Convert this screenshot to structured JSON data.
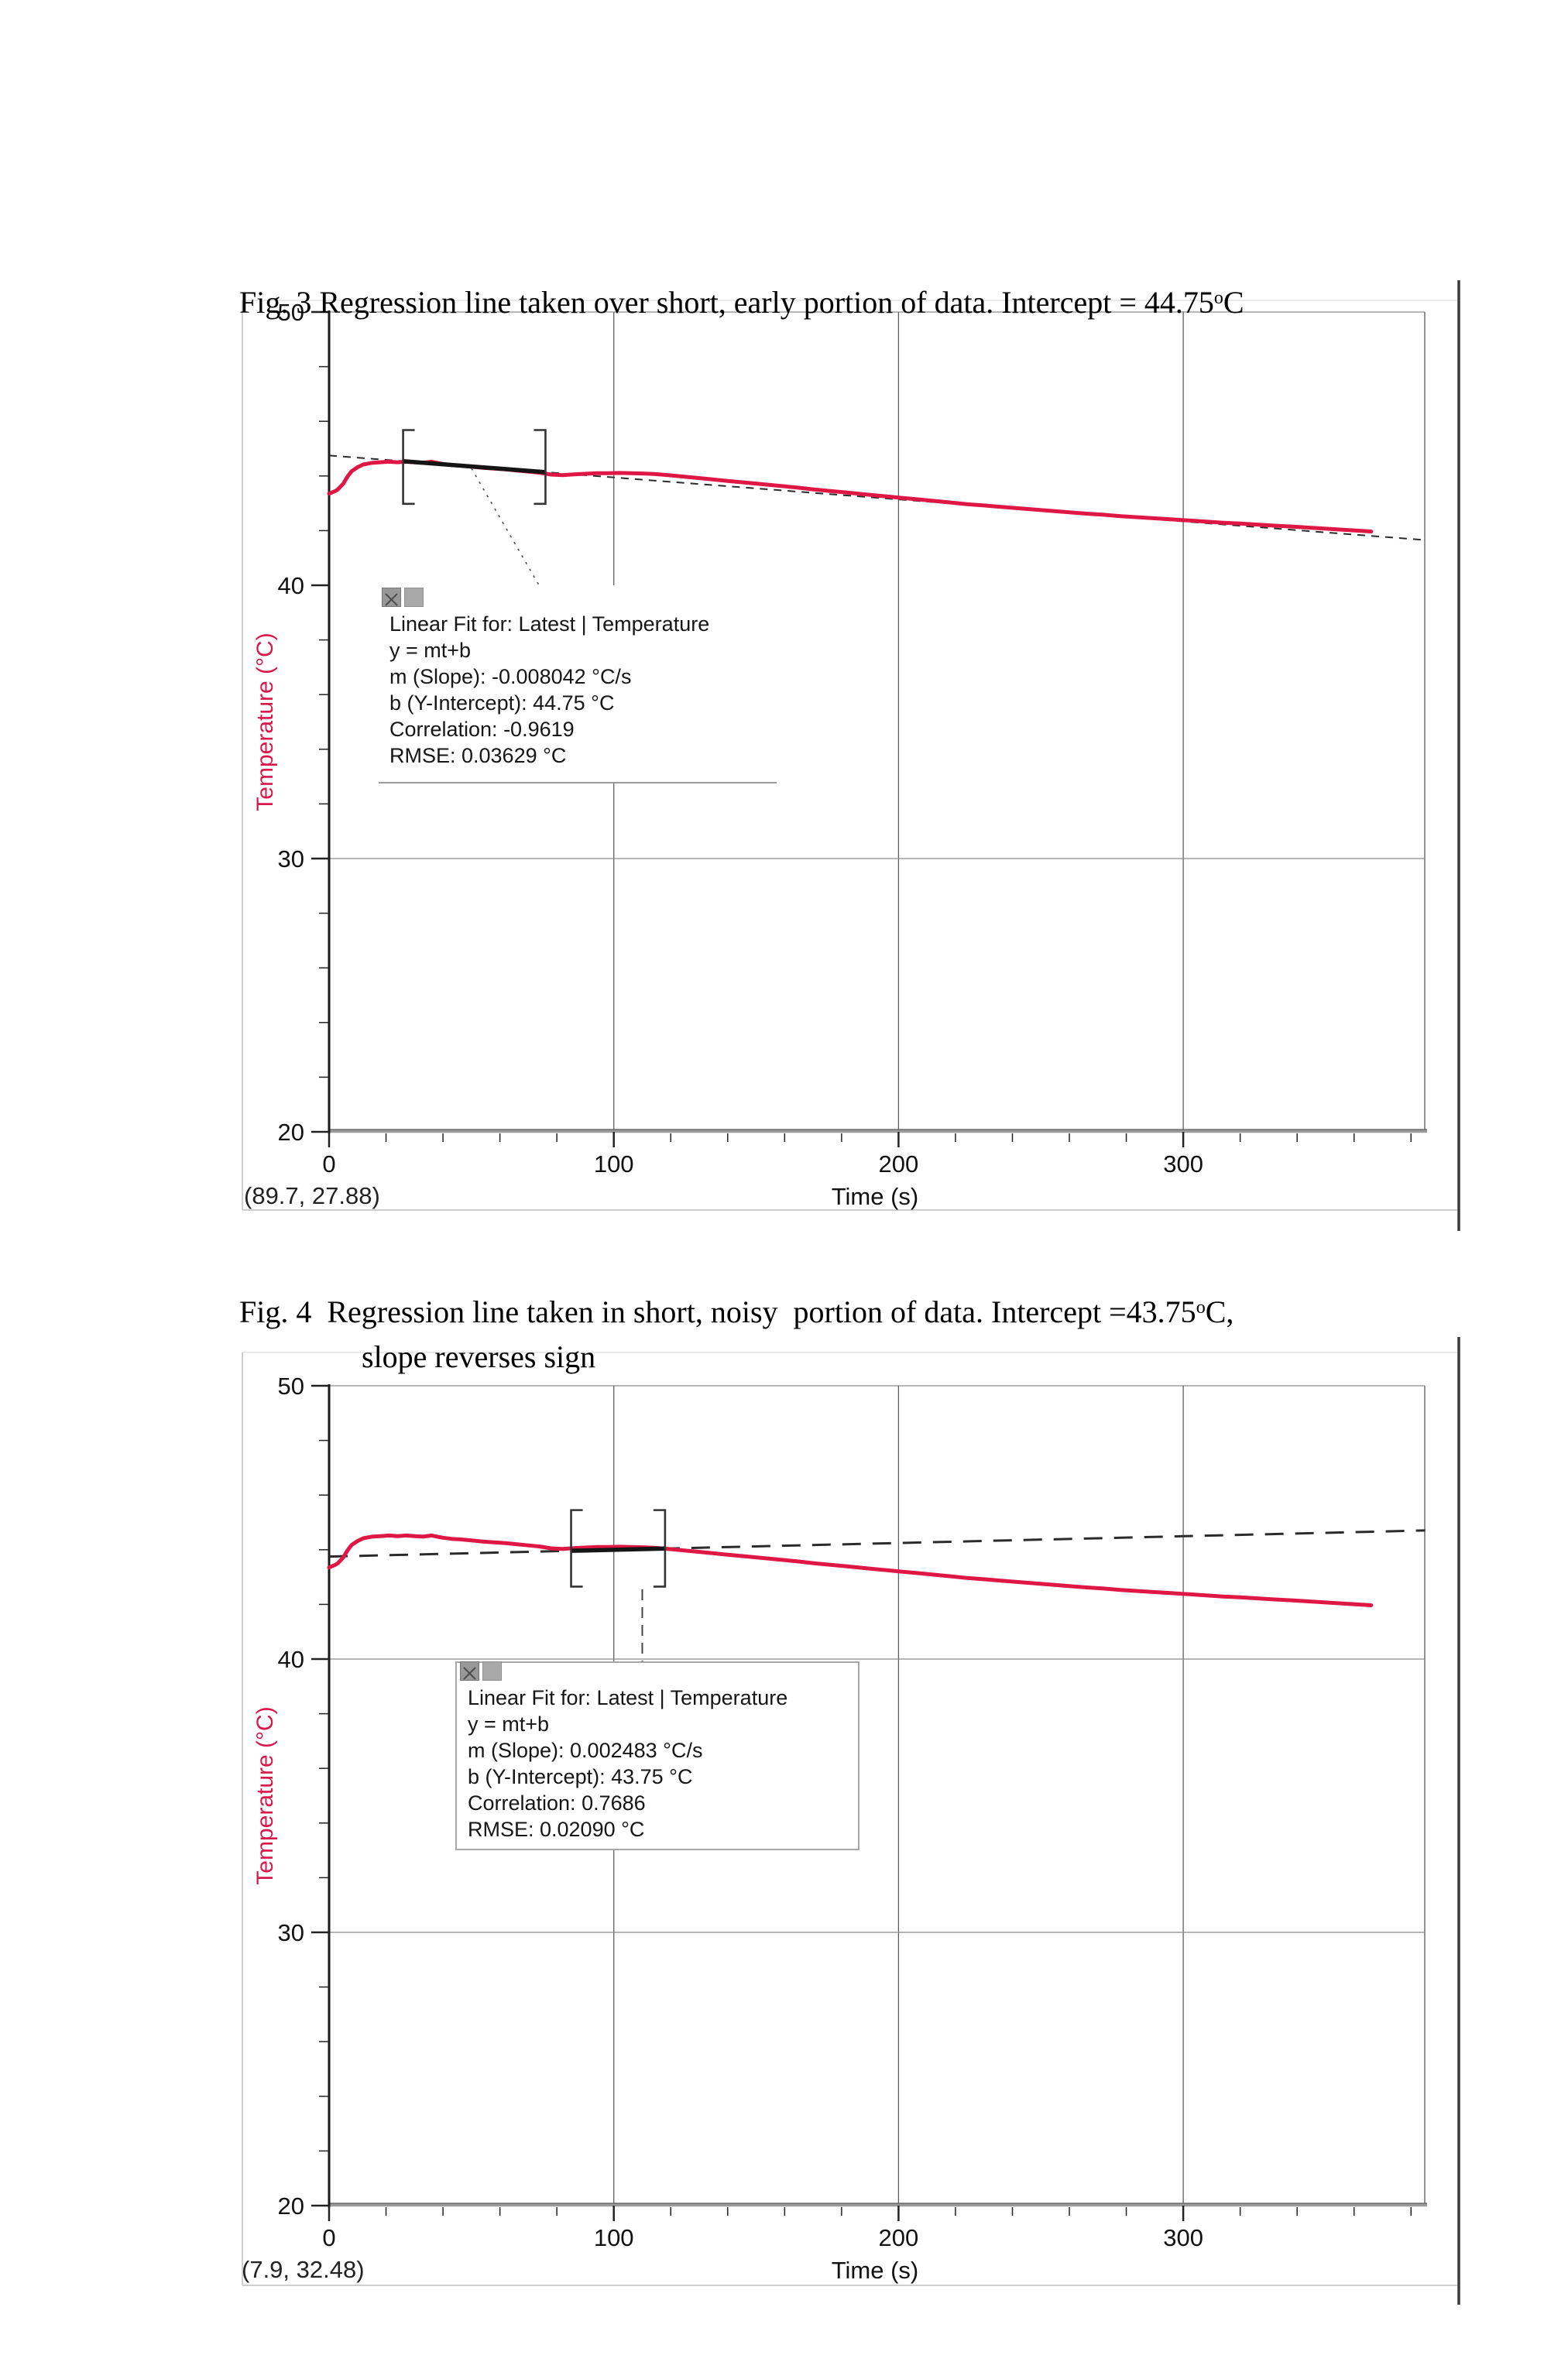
{
  "document": {
    "figures": [
      {
        "caption": {
          "before": "Fig. 3 Regression line taken over short, early portion of data. Intercept = 44.75",
          "sup": "o",
          "after": "C",
          "line2": null
        }
      },
      {
        "caption": {
          "before": "Fig. 4  Regression line taken in short, noisy  portion of data. Intercept =43.75",
          "sup": "o",
          "after": "C,",
          "line2": "slope reverses sign"
        }
      }
    ]
  },
  "chart_data": [
    {
      "type": "line",
      "title": "Fig. 3 Regression line taken over short, early portion of data. Intercept = 44.75°C",
      "xlabel": "Time (s)",
      "ylabel": "Temperature (°C)",
      "xlim": [
        0,
        385
      ],
      "ylim": [
        20,
        50
      ],
      "x_ticks": [
        0,
        100,
        200,
        300
      ],
      "x_minor_step": 20,
      "y_ticks": [
        50,
        40,
        30,
        20
      ],
      "y_minor_step": 2,
      "v_gridlines": [
        100,
        200,
        300
      ],
      "h_gridlines": [
        30
      ],
      "grid": true,
      "legend_position": "none",
      "series_color": "#df1745",
      "ylabel_color": "#d8174a",
      "series": [
        {
          "name": "Latest | Temperature",
          "color": "#df1745",
          "points": [
            [
              0,
              43.35
            ],
            [
              2,
              43.44
            ],
            [
              3,
              43.5
            ],
            [
              5,
              43.72
            ],
            [
              6,
              43.9
            ],
            [
              7,
              44.05
            ],
            [
              8,
              44.18
            ],
            [
              10,
              44.32
            ],
            [
              12,
              44.42
            ],
            [
              15,
              44.48
            ],
            [
              18,
              44.5
            ],
            [
              21,
              44.52
            ],
            [
              24,
              44.5
            ],
            [
              27,
              44.52
            ],
            [
              30,
              44.5
            ],
            [
              33,
              44.48
            ],
            [
              36,
              44.52
            ],
            [
              38,
              44.48
            ],
            [
              40,
              44.44
            ],
            [
              43,
              44.4
            ],
            [
              46,
              44.38
            ],
            [
              50,
              44.34
            ],
            [
              54,
              44.3
            ],
            [
              58,
              44.27
            ],
            [
              62,
              44.24
            ],
            [
              66,
              44.2
            ],
            [
              70,
              44.16
            ],
            [
              74,
              44.12
            ],
            [
              78,
              44.05
            ],
            [
              82,
              44.03
            ],
            [
              86,
              44.06
            ],
            [
              90,
              44.08
            ],
            [
              94,
              44.1
            ],
            [
              98,
              44.1
            ],
            [
              102,
              44.11
            ],
            [
              106,
              44.1
            ],
            [
              110,
              44.09
            ],
            [
              114,
              44.07
            ],
            [
              118,
              44.04
            ],
            [
              122,
              44.0
            ],
            [
              128,
              43.94
            ],
            [
              134,
              43.88
            ],
            [
              140,
              43.82
            ],
            [
              146,
              43.76
            ],
            [
              152,
              43.7
            ],
            [
              158,
              43.64
            ],
            [
              164,
              43.58
            ],
            [
              170,
              43.51
            ],
            [
              176,
              43.45
            ],
            [
              182,
              43.39
            ],
            [
              188,
              43.33
            ],
            [
              194,
              43.27
            ],
            [
              200,
              43.21
            ],
            [
              206,
              43.15
            ],
            [
              212,
              43.09
            ],
            [
              218,
              43.03
            ],
            [
              224,
              42.97
            ],
            [
              230,
              42.92
            ],
            [
              236,
              42.87
            ],
            [
              242,
              42.82
            ],
            [
              248,
              42.77
            ],
            [
              254,
              42.72
            ],
            [
              260,
              42.67
            ],
            [
              266,
              42.62
            ],
            [
              272,
              42.58
            ],
            [
              278,
              42.53
            ],
            [
              284,
              42.49
            ],
            [
              290,
              42.45
            ],
            [
              296,
              42.41
            ],
            [
              302,
              42.37
            ],
            [
              308,
              42.33
            ],
            [
              314,
              42.29
            ],
            [
              320,
              42.26
            ],
            [
              326,
              42.22
            ],
            [
              332,
              42.18
            ],
            [
              338,
              42.15
            ],
            [
              344,
              42.11
            ],
            [
              350,
              42.07
            ],
            [
              356,
              42.03
            ],
            [
              361,
              42.0
            ],
            [
              366,
              41.97
            ]
          ]
        }
      ],
      "fit": {
        "label": "Linear Fit for: Latest | Temperature",
        "equation": "y = mt+b",
        "slope": -0.008042,
        "slope_units": "°C/s",
        "intercept": 44.75,
        "intercept_units": "°C",
        "correlation": -0.9619,
        "rmse": 0.03629,
        "rmse_units": "°C",
        "t_start": 0,
        "t_end": 385,
        "line_style": "dashed-fine"
      },
      "selection": {
        "t_start": 26,
        "t_end": 76,
        "bracket_center_temp": 44.33,
        "bracket_half_height_deg": 1.35
      },
      "connector": {
        "style": "dotted",
        "points": [
          [
            50,
            44.28
          ],
          [
            74,
            39.95
          ]
        ]
      },
      "annotation_box": {
        "border": "bottom",
        "lines": [
          "Linear Fit for: Latest | Temperature",
          "y = mt+b",
          "m (Slope): -0.008042 °C/s",
          "b (Y-Intercept): 44.75 °C",
          "Correlation: -0.9619",
          "RMSE: 0.03629 °C"
        ]
      },
      "cursor_readout": "(89.7, 27.88)"
    },
    {
      "type": "line",
      "title": "Fig. 4 Regression line taken in short, noisy portion of data. Intercept =43.75°C, slope reverses sign",
      "xlabel": "Time (s)",
      "ylabel": "Temperature (°C)",
      "xlim": [
        0,
        385
      ],
      "ylim": [
        20,
        50
      ],
      "x_ticks": [
        0,
        100,
        200,
        300
      ],
      "x_minor_step": 20,
      "y_ticks": [
        50,
        40,
        30,
        20
      ],
      "y_minor_step": 2,
      "v_gridlines": [
        100,
        200,
        300
      ],
      "h_gridlines": [
        40,
        30
      ],
      "grid": true,
      "legend_position": "none",
      "series_color": "#df1745",
      "ylabel_color": "#d8174a",
      "series": [
        {
          "name": "Latest | Temperature",
          "color": "#df1745",
          "points": [
            [
              0,
              43.35
            ],
            [
              2,
              43.44
            ],
            [
              3,
              43.5
            ],
            [
              5,
              43.72
            ],
            [
              6,
              43.9
            ],
            [
              7,
              44.05
            ],
            [
              8,
              44.18
            ],
            [
              10,
              44.32
            ],
            [
              12,
              44.42
            ],
            [
              15,
              44.48
            ],
            [
              18,
              44.5
            ],
            [
              21,
              44.52
            ],
            [
              24,
              44.5
            ],
            [
              27,
              44.52
            ],
            [
              30,
              44.5
            ],
            [
              33,
              44.48
            ],
            [
              36,
              44.52
            ],
            [
              38,
              44.48
            ],
            [
              40,
              44.44
            ],
            [
              43,
              44.4
            ],
            [
              46,
              44.38
            ],
            [
              50,
              44.34
            ],
            [
              54,
              44.3
            ],
            [
              58,
              44.27
            ],
            [
              62,
              44.24
            ],
            [
              66,
              44.2
            ],
            [
              70,
              44.16
            ],
            [
              74,
              44.12
            ],
            [
              78,
              44.05
            ],
            [
              82,
              44.03
            ],
            [
              86,
              44.06
            ],
            [
              90,
              44.08
            ],
            [
              94,
              44.1
            ],
            [
              98,
              44.1
            ],
            [
              102,
              44.11
            ],
            [
              106,
              44.1
            ],
            [
              110,
              44.09
            ],
            [
              114,
              44.07
            ],
            [
              118,
              44.04
            ],
            [
              122,
              44.0
            ],
            [
              128,
              43.94
            ],
            [
              134,
              43.88
            ],
            [
              140,
              43.82
            ],
            [
              146,
              43.76
            ],
            [
              152,
              43.7
            ],
            [
              158,
              43.64
            ],
            [
              164,
              43.58
            ],
            [
              170,
              43.51
            ],
            [
              176,
              43.45
            ],
            [
              182,
              43.39
            ],
            [
              188,
              43.33
            ],
            [
              194,
              43.27
            ],
            [
              200,
              43.21
            ],
            [
              206,
              43.15
            ],
            [
              212,
              43.09
            ],
            [
              218,
              43.03
            ],
            [
              224,
              42.97
            ],
            [
              230,
              42.92
            ],
            [
              236,
              42.87
            ],
            [
              242,
              42.82
            ],
            [
              248,
              42.77
            ],
            [
              254,
              42.72
            ],
            [
              260,
              42.67
            ],
            [
              266,
              42.62
            ],
            [
              272,
              42.58
            ],
            [
              278,
              42.53
            ],
            [
              284,
              42.49
            ],
            [
              290,
              42.45
            ],
            [
              296,
              42.41
            ],
            [
              302,
              42.37
            ],
            [
              308,
              42.33
            ],
            [
              314,
              42.29
            ],
            [
              320,
              42.26
            ],
            [
              326,
              42.22
            ],
            [
              332,
              42.18
            ],
            [
              338,
              42.15
            ],
            [
              344,
              42.11
            ],
            [
              350,
              42.07
            ],
            [
              356,
              42.03
            ],
            [
              361,
              42.0
            ],
            [
              366,
              41.97
            ]
          ]
        }
      ],
      "fit": {
        "label": "Linear Fit for: Latest | Temperature",
        "equation": "y = mt+b",
        "slope": 0.002483,
        "slope_units": "°C/s",
        "intercept": 43.75,
        "intercept_units": "°C",
        "correlation": 0.7686,
        "rmse": 0.0209,
        "rmse_units": "°C",
        "t_start": 0,
        "t_end": 385,
        "line_style": "dashed-long"
      },
      "selection": {
        "t_start": 85,
        "t_end": 118,
        "bracket_center_temp": 44.05,
        "bracket_half_height_deg": 1.4
      },
      "connector": {
        "style": "dashed",
        "points": [
          [
            110,
            42.55
          ],
          [
            110,
            39.9
          ]
        ]
      },
      "annotation_box": {
        "border": "full",
        "lines": [
          "Linear Fit for: Latest | Temperature",
          "y = mt+b",
          "m (Slope): 0.002483 °C/s",
          "b (Y-Intercept): 43.75 °C",
          "Correlation: 0.7686",
          "RMSE: 0.02090 °C"
        ]
      },
      "cursor_readout": "(7.9, 32.48)"
    }
  ]
}
